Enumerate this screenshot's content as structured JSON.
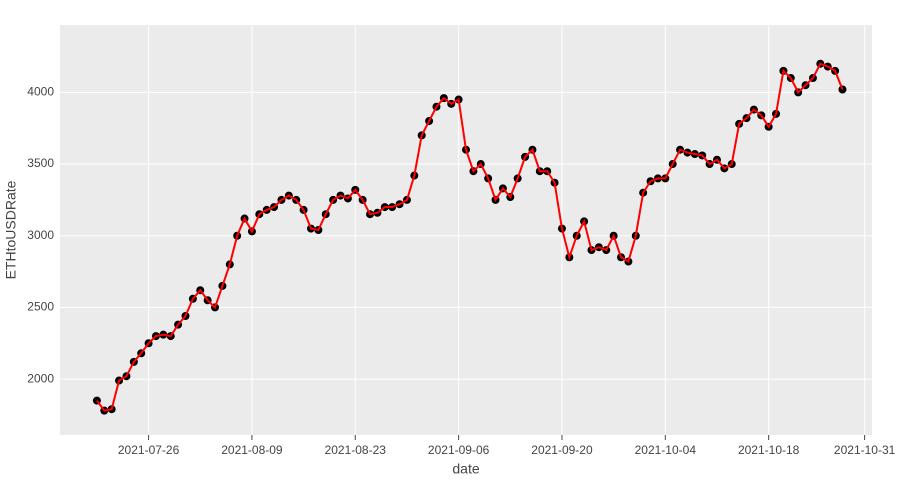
{
  "chart_data": {
    "type": "line",
    "x_label": "date",
    "y_label": "ETHtoUSDRate",
    "x": [
      "2021-07-19",
      "2021-07-20",
      "2021-07-21",
      "2021-07-22",
      "2021-07-23",
      "2021-07-24",
      "2021-07-25",
      "2021-07-26",
      "2021-07-27",
      "2021-07-28",
      "2021-07-29",
      "2021-07-30",
      "2021-07-31",
      "2021-08-01",
      "2021-08-02",
      "2021-08-03",
      "2021-08-04",
      "2021-08-05",
      "2021-08-06",
      "2021-08-07",
      "2021-08-08",
      "2021-08-09",
      "2021-08-10",
      "2021-08-11",
      "2021-08-12",
      "2021-08-13",
      "2021-08-14",
      "2021-08-15",
      "2021-08-16",
      "2021-08-17",
      "2021-08-18",
      "2021-08-19",
      "2021-08-20",
      "2021-08-21",
      "2021-08-22",
      "2021-08-23",
      "2021-08-24",
      "2021-08-25",
      "2021-08-26",
      "2021-08-27",
      "2021-08-28",
      "2021-08-29",
      "2021-08-30",
      "2021-08-31",
      "2021-09-01",
      "2021-09-02",
      "2021-09-03",
      "2021-09-04",
      "2021-09-05",
      "2021-09-06",
      "2021-09-07",
      "2021-09-08",
      "2021-09-09",
      "2021-09-10",
      "2021-09-11",
      "2021-09-12",
      "2021-09-13",
      "2021-09-14",
      "2021-09-15",
      "2021-09-16",
      "2021-09-17",
      "2021-09-18",
      "2021-09-19",
      "2021-09-20",
      "2021-09-21",
      "2021-09-22",
      "2021-09-23",
      "2021-09-24",
      "2021-09-25",
      "2021-09-26",
      "2021-09-27",
      "2021-09-28",
      "2021-09-29",
      "2021-09-30",
      "2021-10-01",
      "2021-10-02",
      "2021-10-03",
      "2021-10-04",
      "2021-10-05",
      "2021-10-06",
      "2021-10-07",
      "2021-10-08",
      "2021-10-09",
      "2021-10-10",
      "2021-10-11",
      "2021-10-12",
      "2021-10-13",
      "2021-10-14",
      "2021-10-15",
      "2021-10-16",
      "2021-10-17",
      "2021-10-18",
      "2021-10-19",
      "2021-10-20",
      "2021-10-21",
      "2021-10-22",
      "2021-10-23",
      "2021-10-24",
      "2021-10-25",
      "2021-10-26",
      "2021-10-27",
      "2021-10-28"
    ],
    "values": [
      1850,
      1780,
      1790,
      1990,
      2020,
      2120,
      2180,
      2250,
      2300,
      2310,
      2300,
      2380,
      2440,
      2560,
      2620,
      2550,
      2500,
      2650,
      2800,
      3000,
      3120,
      3030,
      3150,
      3180,
      3200,
      3250,
      3280,
      3250,
      3180,
      3050,
      3040,
      3150,
      3250,
      3280,
      3260,
      3320,
      3250,
      3150,
      3160,
      3200,
      3200,
      3220,
      3250,
      3420,
      3700,
      3800,
      3900,
      3960,
      3920,
      3950,
      3600,
      3450,
      3500,
      3400,
      3250,
      3330,
      3270,
      3400,
      3550,
      3600,
      3450,
      3450,
      3370,
      3050,
      2850,
      3000,
      3100,
      2900,
      2920,
      2900,
      3000,
      2850,
      2820,
      3000,
      3300,
      3380,
      3400,
      3400,
      3500,
      3600,
      3580,
      3570,
      3560,
      3500,
      3530,
      3470,
      3500,
      3780,
      3820,
      3880,
      3840,
      3760,
      3850,
      4150,
      4100,
      4000,
      4050,
      4100,
      4200,
      4180,
      4150,
      4020
    ],
    "marker_color": "#000000",
    "line_color": "#ff0000",
    "xlim": [
      "2021-07-14",
      "2021-11-01"
    ],
    "xticks": [
      "2021-07-26",
      "2021-08-09",
      "2021-08-23",
      "2021-09-06",
      "2021-09-20",
      "2021-10-04",
      "2021-10-18",
      "2021-10-31"
    ],
    "ylim": [
      1610,
      4470
    ],
    "yticks": [
      2000,
      2500,
      3000,
      3500,
      4000
    ],
    "grid": true
  }
}
